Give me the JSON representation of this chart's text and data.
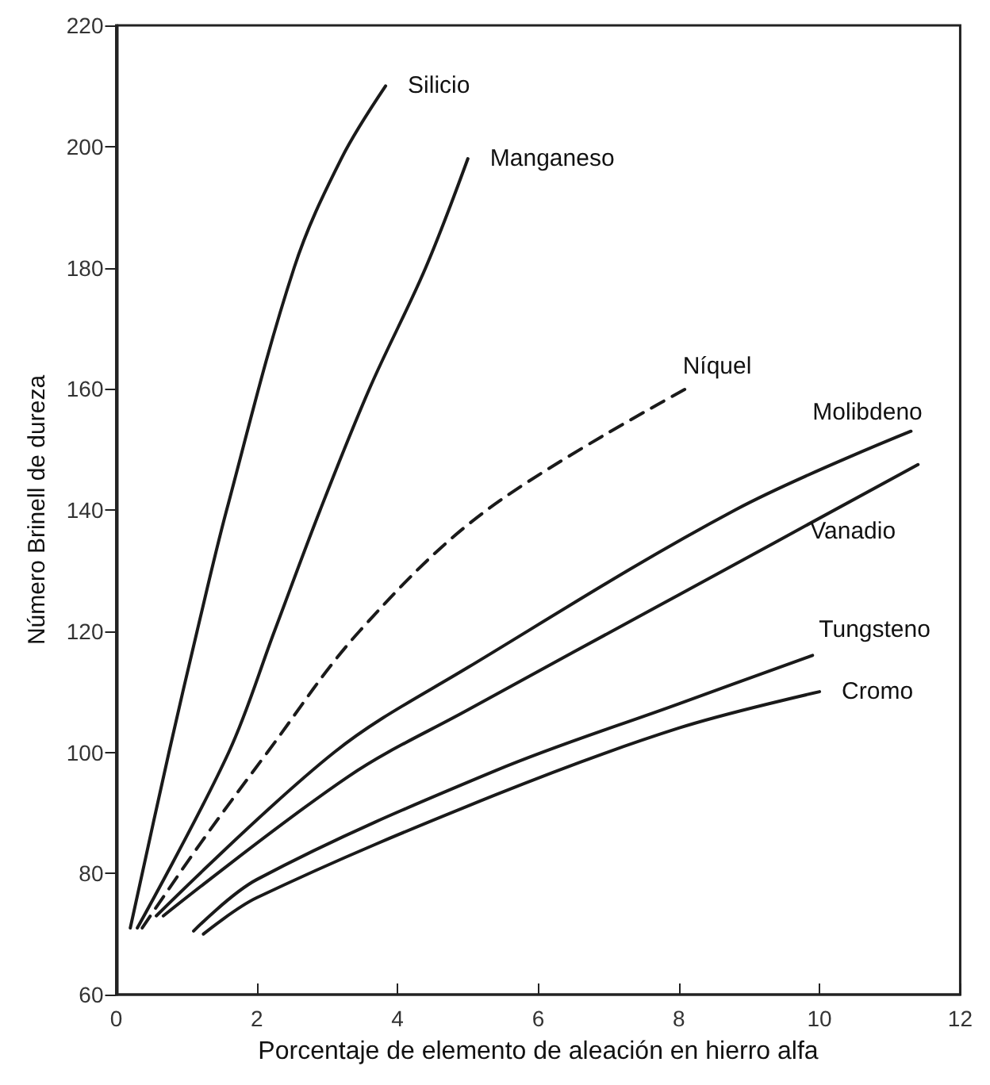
{
  "chart_data": {
    "type": "line",
    "xlabel": "Porcentaje de elemento de aleación en hierro alfa",
    "ylabel": "Número Brinell de dureza",
    "xlim": [
      0,
      12
    ],
    "xticks": [
      0,
      2,
      4,
      6,
      8,
      10,
      12
    ],
    "ylim": [
      60,
      220
    ],
    "yticks": [
      60,
      80,
      100,
      120,
      140,
      160,
      180,
      200,
      220
    ],
    "grid": false,
    "legend": false,
    "marker": "none",
    "line_style": "solid",
    "series": [
      {
        "name": "Silicio",
        "color": "#1a1a1a",
        "x": [
          0.2,
          0.75,
          1.15,
          1.57,
          2.53,
          3.2,
          3.83
        ],
        "values": [
          71,
          100,
          120,
          140,
          180,
          198,
          210
        ]
      },
      {
        "name": "Manganeso",
        "color": "#1a1a1a",
        "x": [
          0.3,
          1.6,
          2.25,
          2.9,
          3.6,
          4.4,
          5.0
        ],
        "values": [
          71,
          100,
          120,
          140,
          160,
          180,
          198
        ]
      },
      {
        "name": "Níquel",
        "color": "#1a1a1a",
        "line_style": "dashed",
        "x": [
          0.37,
          1.2,
          2.15,
          3.46,
          5.27,
          8.1
        ],
        "values": [
          71,
          85,
          100,
          120,
          140,
          160
        ]
      },
      {
        "name": "Molibdeno",
        "color": "#1a1a1a",
        "x": [
          0.57,
          3.1,
          5.0,
          8.8,
          11.3
        ],
        "values": [
          73,
          100,
          114,
          140,
          153
        ]
      },
      {
        "name": "Vanadio",
        "color": "#1a1a1a",
        "x": [
          0.67,
          3.3,
          5.0,
          8.0,
          11.4
        ],
        "values": [
          73,
          96,
          107,
          126,
          147.5
        ]
      },
      {
        "name": "Tungsteno",
        "color": "#1a1a1a",
        "x": [
          1.1,
          2.0,
          5.4,
          8.0,
          9.9
        ],
        "values": [
          70.5,
          79,
          97,
          108,
          116
        ]
      },
      {
        "name": "Cromo",
        "color": "#1a1a1a",
        "x": [
          1.24,
          2.0,
          5.4,
          8.0,
          10.0
        ],
        "values": [
          70,
          76,
          93,
          104,
          110
        ]
      }
    ]
  }
}
